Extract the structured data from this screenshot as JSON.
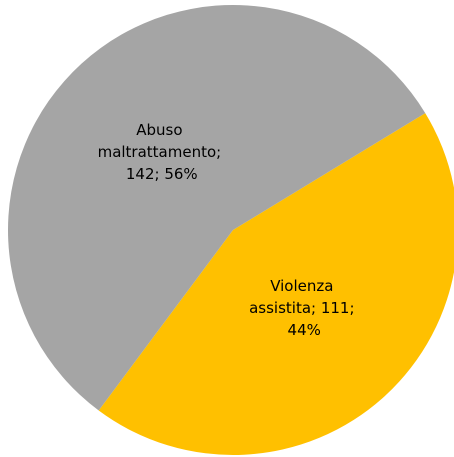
{
  "chart_data": {
    "type": "pie",
    "values": [
      111,
      142
    ],
    "value_labels": [
      "Violenza assistita; 111; 44%",
      "Abuso maltrattamento; 142; 56%"
    ],
    "colors": [
      "#ffc000",
      "#a5a5a5"
    ]
  }
}
